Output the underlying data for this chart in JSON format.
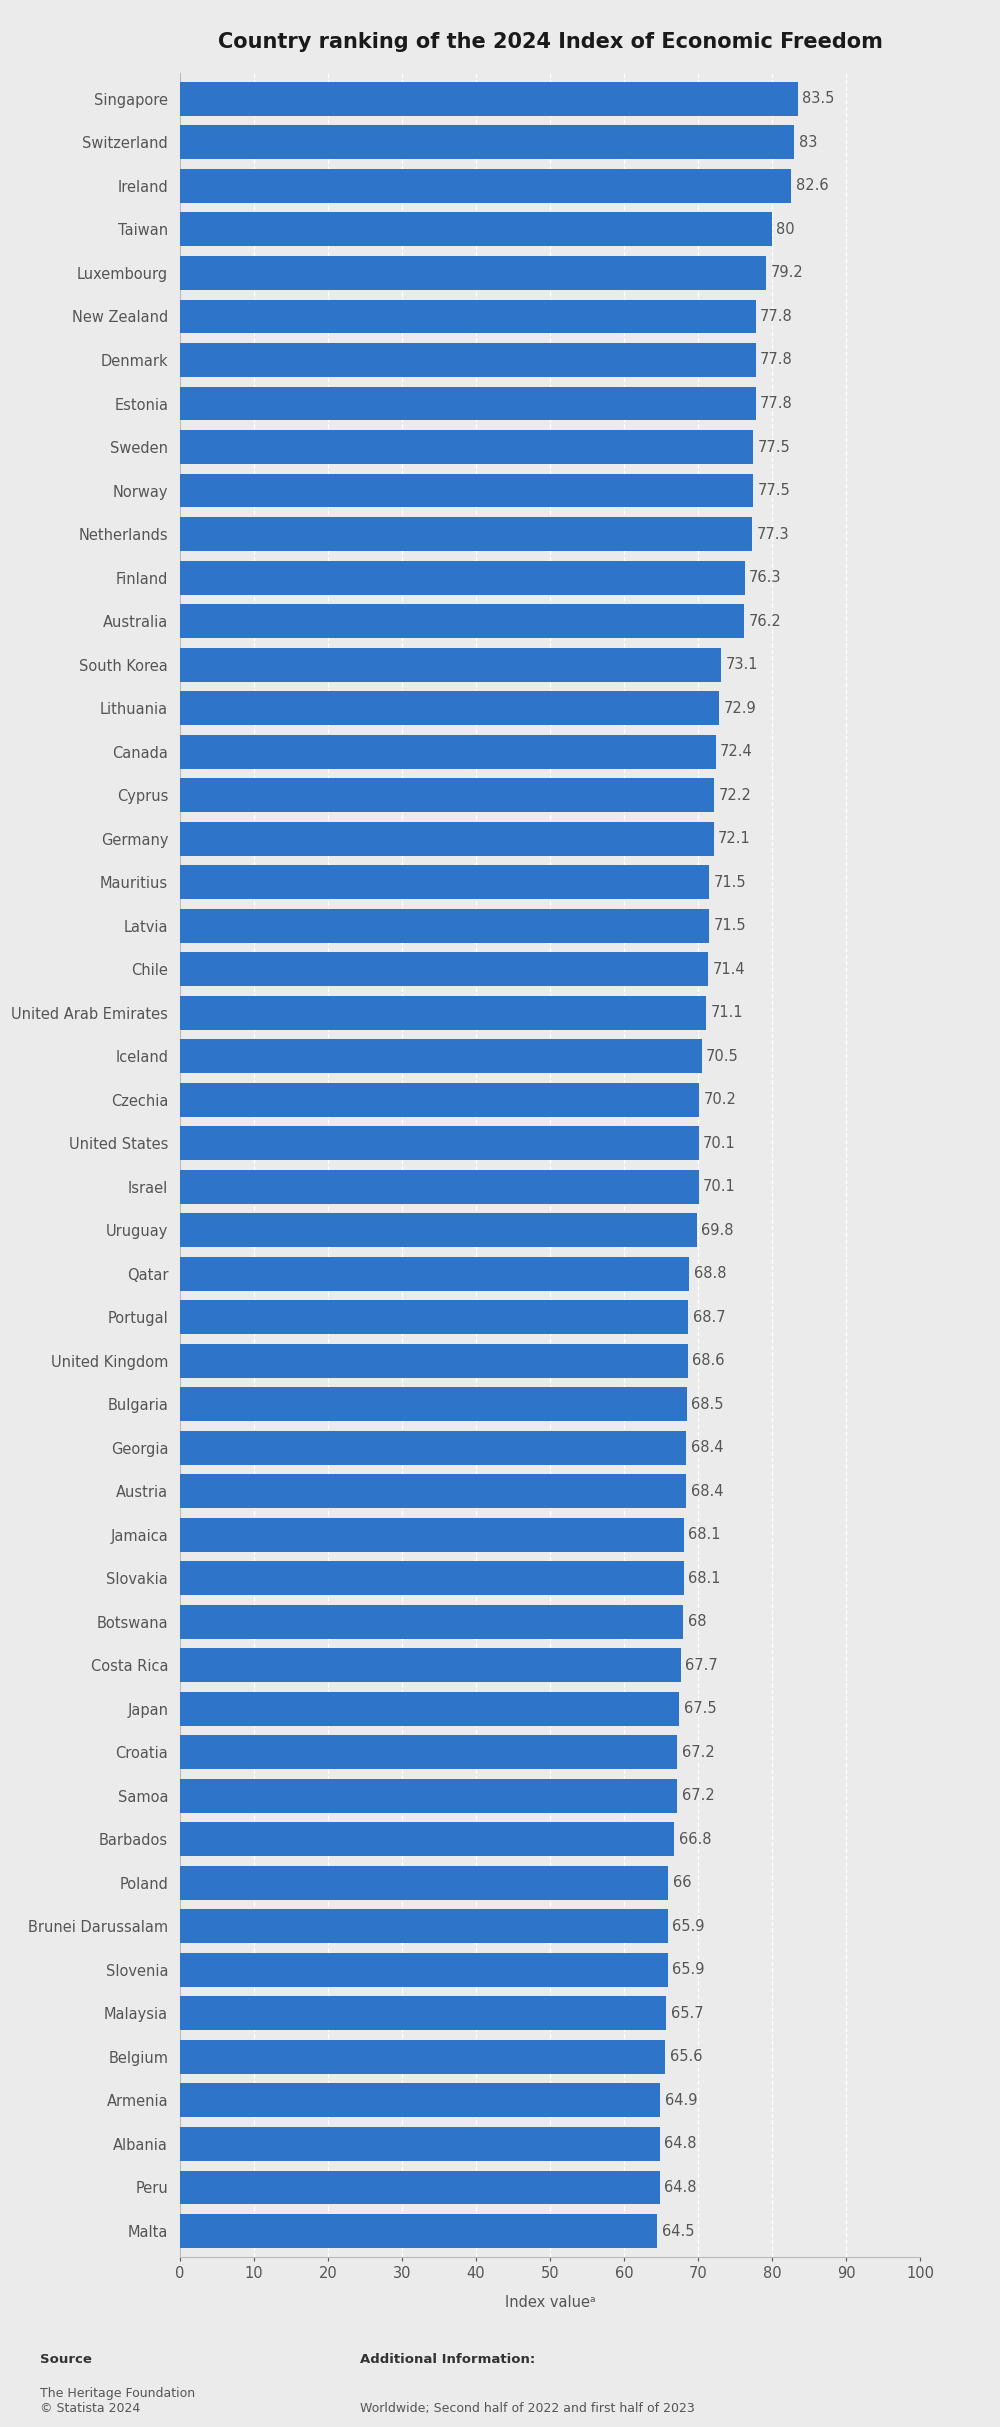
{
  "title": "Country ranking of the 2024 Index of Economic Freedom",
  "categories": [
    "Singapore",
    "Switzerland",
    "Ireland",
    "Taiwan",
    "Luxembourg",
    "New Zealand",
    "Denmark",
    "Estonia",
    "Sweden",
    "Norway",
    "Netherlands",
    "Finland",
    "Australia",
    "South Korea",
    "Lithuania",
    "Canada",
    "Cyprus",
    "Germany",
    "Mauritius",
    "Latvia",
    "Chile",
    "United Arab Emirates",
    "Iceland",
    "Czechia",
    "United States",
    "Israel",
    "Uruguay",
    "Qatar",
    "Portugal",
    "United Kingdom",
    "Bulgaria",
    "Georgia",
    "Austria",
    "Jamaica",
    "Slovakia",
    "Botswana",
    "Costa Rica",
    "Japan",
    "Croatia",
    "Samoa",
    "Barbados",
    "Poland",
    "Brunei Darussalam",
    "Slovenia",
    "Malaysia",
    "Belgium",
    "Armenia",
    "Albania",
    "Peru",
    "Malta"
  ],
  "values": [
    83.5,
    83,
    82.6,
    80,
    79.2,
    77.8,
    77.8,
    77.8,
    77.5,
    77.5,
    77.3,
    76.3,
    76.2,
    73.1,
    72.9,
    72.4,
    72.2,
    72.1,
    71.5,
    71.5,
    71.4,
    71.1,
    70.5,
    70.2,
    70.1,
    70.1,
    69.8,
    68.8,
    68.7,
    68.6,
    68.5,
    68.4,
    68.4,
    68.1,
    68.1,
    68,
    67.7,
    67.5,
    67.2,
    67.2,
    66.8,
    66,
    65.9,
    65.9,
    65.7,
    65.6,
    64.9,
    64.8,
    64.8,
    64.5
  ],
  "bar_color": "#2e75c9",
  "background_color": "#ebebeb",
  "plot_background_color": "#ebebeb",
  "xlabel": "Index valueᵃ",
  "xticks": [
    0,
    10,
    20,
    30,
    40,
    50,
    60,
    70,
    80,
    90,
    100
  ],
  "xlim": [
    0,
    100
  ],
  "source_label": "Source",
  "source_body": "The Heritage Foundation\n© Statista 2024",
  "additional_label": "Additional Information:",
  "additional_body": "Worldwide; Second half of 2022 and first half of 2023",
  "title_fontsize": 15,
  "label_fontsize": 10.5,
  "value_fontsize": 10.5,
  "tick_fontsize": 10.5,
  "axis_label_fontsize": 10.5
}
